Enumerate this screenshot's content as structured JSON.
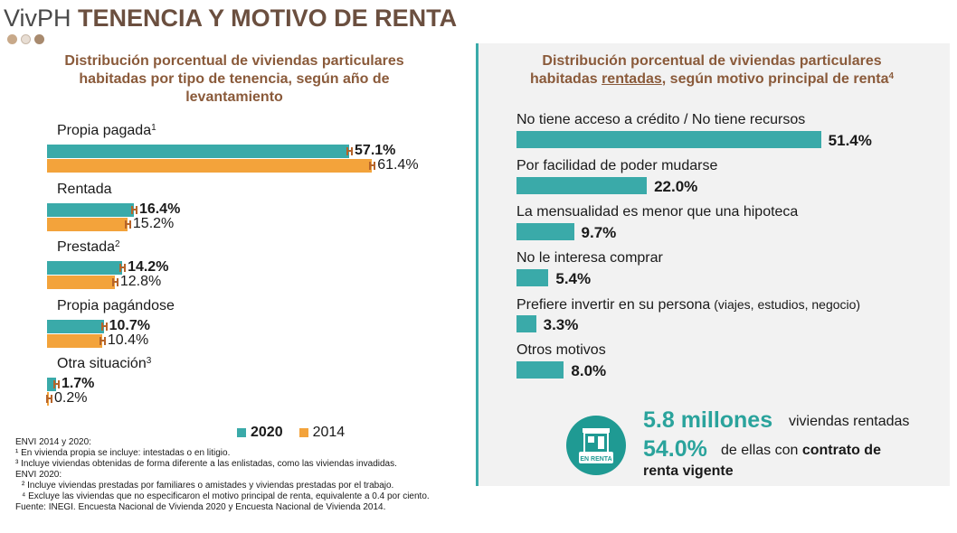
{
  "header": {
    "title_prefix": "VivPH",
    "title_main": "TENENCIA Y MOTIVO DE RENTA",
    "dots": [
      "#c8a98a",
      "#e8ded4",
      "#a88a6e"
    ]
  },
  "colors": {
    "series_2020": "#3aaaa9",
    "series_2014": "#f3a33b",
    "title_brown": "#8a5a3a",
    "accent_teal": "#2aa39c"
  },
  "chart_data": [
    {
      "type": "bar",
      "orientation": "horizontal",
      "title": "Distribución porcentual de viviendas particulares habitadas por tipo de tenencia, según año de levantamiento",
      "title_lines": [
        "Distribución porcentual de viviendas particulares",
        "habitadas por tipo de tenencia, según año de",
        "levantamiento"
      ],
      "categories": [
        {
          "label": "Propia pagada",
          "note": "1"
        },
        {
          "label": "Rentada",
          "note": ""
        },
        {
          "label": "Prestada",
          "note": "2"
        },
        {
          "label": "Propia pagándose",
          "note": ""
        },
        {
          "label": "Otra situación",
          "note": "3"
        }
      ],
      "series": [
        {
          "name": "2020",
          "values": [
            57.1,
            16.4,
            14.2,
            10.7,
            1.7
          ],
          "labels": [
            "57.1%",
            "16.4%",
            "14.2%",
            "10.7%",
            "1.7%"
          ]
        },
        {
          "name": "2014",
          "values": [
            61.4,
            15.2,
            12.8,
            10.4,
            0.2
          ],
          "labels": [
            "61.4%",
            "15.2%",
            "12.8%",
            "10.4%",
            "0.2%"
          ]
        }
      ],
      "error_bars": true,
      "legend": "bottom",
      "grid": false
    },
    {
      "type": "bar",
      "orientation": "horizontal",
      "title_lines": [
        "Distribución porcentual de viviendas particulares",
        "habitadas rentadas, según motivo principal de renta"
      ],
      "title_note": "4",
      "categories": [
        {
          "label": "No tiene acceso a crédito / No tiene recursos",
          "detail": ""
        },
        {
          "label": "Por facilidad de poder mudarse",
          "detail": ""
        },
        {
          "label": "La mensualidad es menor que una hipoteca",
          "detail": ""
        },
        {
          "label": "No le interesa comprar",
          "detail": ""
        },
        {
          "label": "Prefiere invertir en su persona",
          "detail": " (viajes, estudios, negocio)"
        },
        {
          "label": "Otros motivos",
          "detail": ""
        }
      ],
      "values": [
        51.4,
        22.0,
        9.7,
        5.4,
        3.3,
        8.0
      ],
      "labels": [
        "51.4%",
        "22.0%",
        "9.7%",
        "5.4%",
        "3.3%",
        "8.0%"
      ],
      "grid": false
    }
  ],
  "legend": {
    "label_2020": "2020",
    "label_2014": "2014"
  },
  "notes": [
    "ENVI 2014 y 2020:",
    "¹ En vivienda propia se incluye: intestadas o en litigio.",
    "³ Incluye viviendas obtenidas de forma diferente a las enlistadas, como las viviendas invadidas.",
    "ENVI 2020:",
    "² Incluye viviendas prestadas por familiares o amistades y viviendas prestadas por el trabajo.",
    "⁴ Excluye las viviendas que no especificaron el motivo principal de renta, equivalente a 0.4 por ciento.",
    "Fuente: INEGI. Encuesta Nacional de Vivienda 2020 y Encuesta Nacional de Vivienda 2014."
  ],
  "callout": {
    "icon": "house-for-rent-icon",
    "icon_label": "EN RENTA",
    "stat1_number": "5.8 millones",
    "stat1_text": "viviendas rentadas",
    "stat2_number": "54.0%",
    "stat2_text_a": "de ellas con",
    "stat2_text_b": "contrato de",
    "stat2_text_c": "renta vigente"
  }
}
